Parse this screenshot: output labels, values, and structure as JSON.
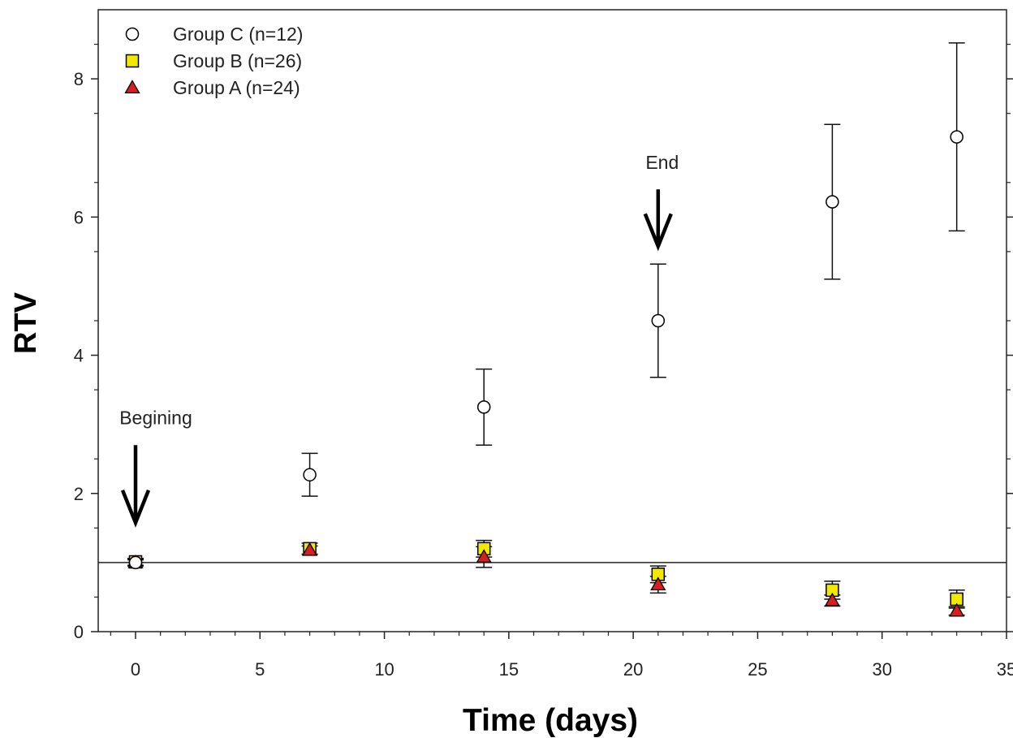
{
  "chart_data": {
    "type": "scatter",
    "title": "",
    "xlabel": "Time (days)",
    "ylabel": "RTV",
    "xlim": [
      -1.5,
      35
    ],
    "ylim": [
      0,
      9
    ],
    "xticks": [
      0,
      5,
      10,
      15,
      20,
      25,
      30,
      35
    ],
    "yticks": [
      0,
      2,
      4,
      6,
      8
    ],
    "reference_line_y": 1.0,
    "legend_position": "top-left",
    "series": [
      {
        "name": "Group C (n=12)",
        "marker": "circle-open",
        "color": "#000000",
        "fill": "#ffffff",
        "x": [
          0,
          7,
          14,
          21,
          28,
          33
        ],
        "y": [
          1.0,
          2.27,
          3.25,
          4.5,
          6.22,
          7.16
        ],
        "err": [
          0.05,
          0.31,
          0.55,
          0.82,
          1.12,
          1.36
        ]
      },
      {
        "name": "Group B  (n=26)",
        "marker": "square",
        "color": "#000000",
        "fill": "#f2e800",
        "x": [
          0,
          7,
          14,
          21,
          28,
          33
        ],
        "y": [
          1.01,
          1.2,
          1.2,
          0.83,
          0.6,
          0.47
        ],
        "err": [
          0.05,
          0.08,
          0.12,
          0.12,
          0.13,
          0.13
        ]
      },
      {
        "name": "Group A  (n=24)",
        "marker": "triangle",
        "color": "#000000",
        "fill": "#d81e1e",
        "x": [
          0,
          7,
          14,
          21,
          28,
          33
        ],
        "y": [
          1.0,
          1.18,
          1.08,
          0.68,
          0.45,
          0.3
        ],
        "err": [
          0.04,
          0.06,
          0.15,
          0.12,
          0.08,
          0.06
        ]
      }
    ],
    "annotations": [
      {
        "text": "Begining",
        "x": 0,
        "y_text": 3.0,
        "arrow_from": 2.7,
        "arrow_to": 1.6
      },
      {
        "text": "End",
        "x": 21,
        "y_text": 6.7,
        "arrow_from": 6.4,
        "arrow_to": 5.6
      }
    ]
  }
}
